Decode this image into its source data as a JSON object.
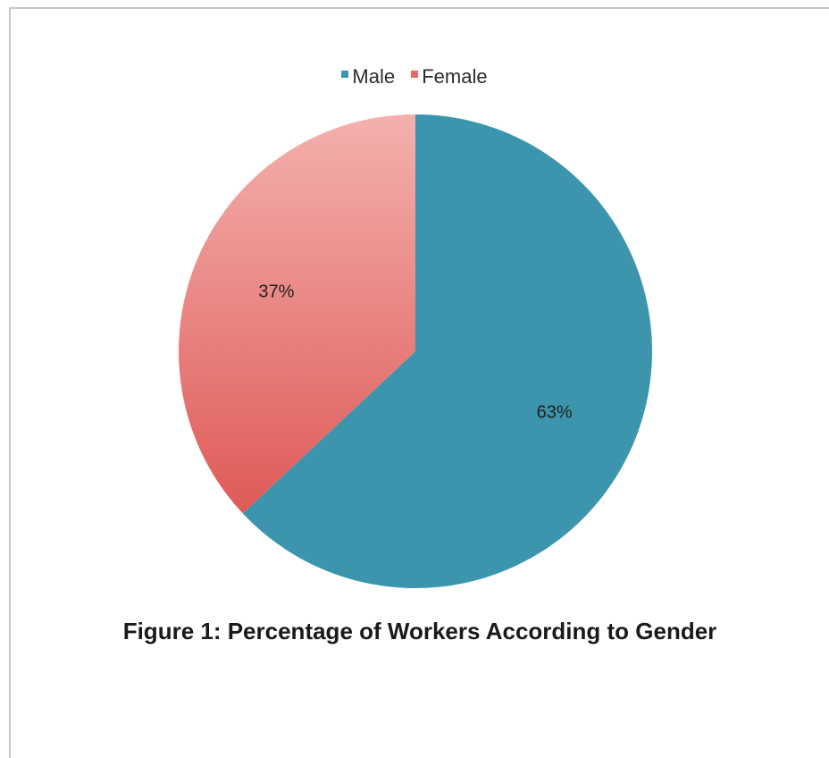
{
  "chart_data": {
    "type": "pie",
    "categories": [
      "Male",
      "Female"
    ],
    "values": [
      63,
      37
    ],
    "data_labels": [
      "63%",
      "37%"
    ],
    "colors": [
      "#3c95ad",
      "#e56a68"
    ],
    "legend_position": "top",
    "caption": "Figure 1: Percentage of Workers According to Gender"
  }
}
